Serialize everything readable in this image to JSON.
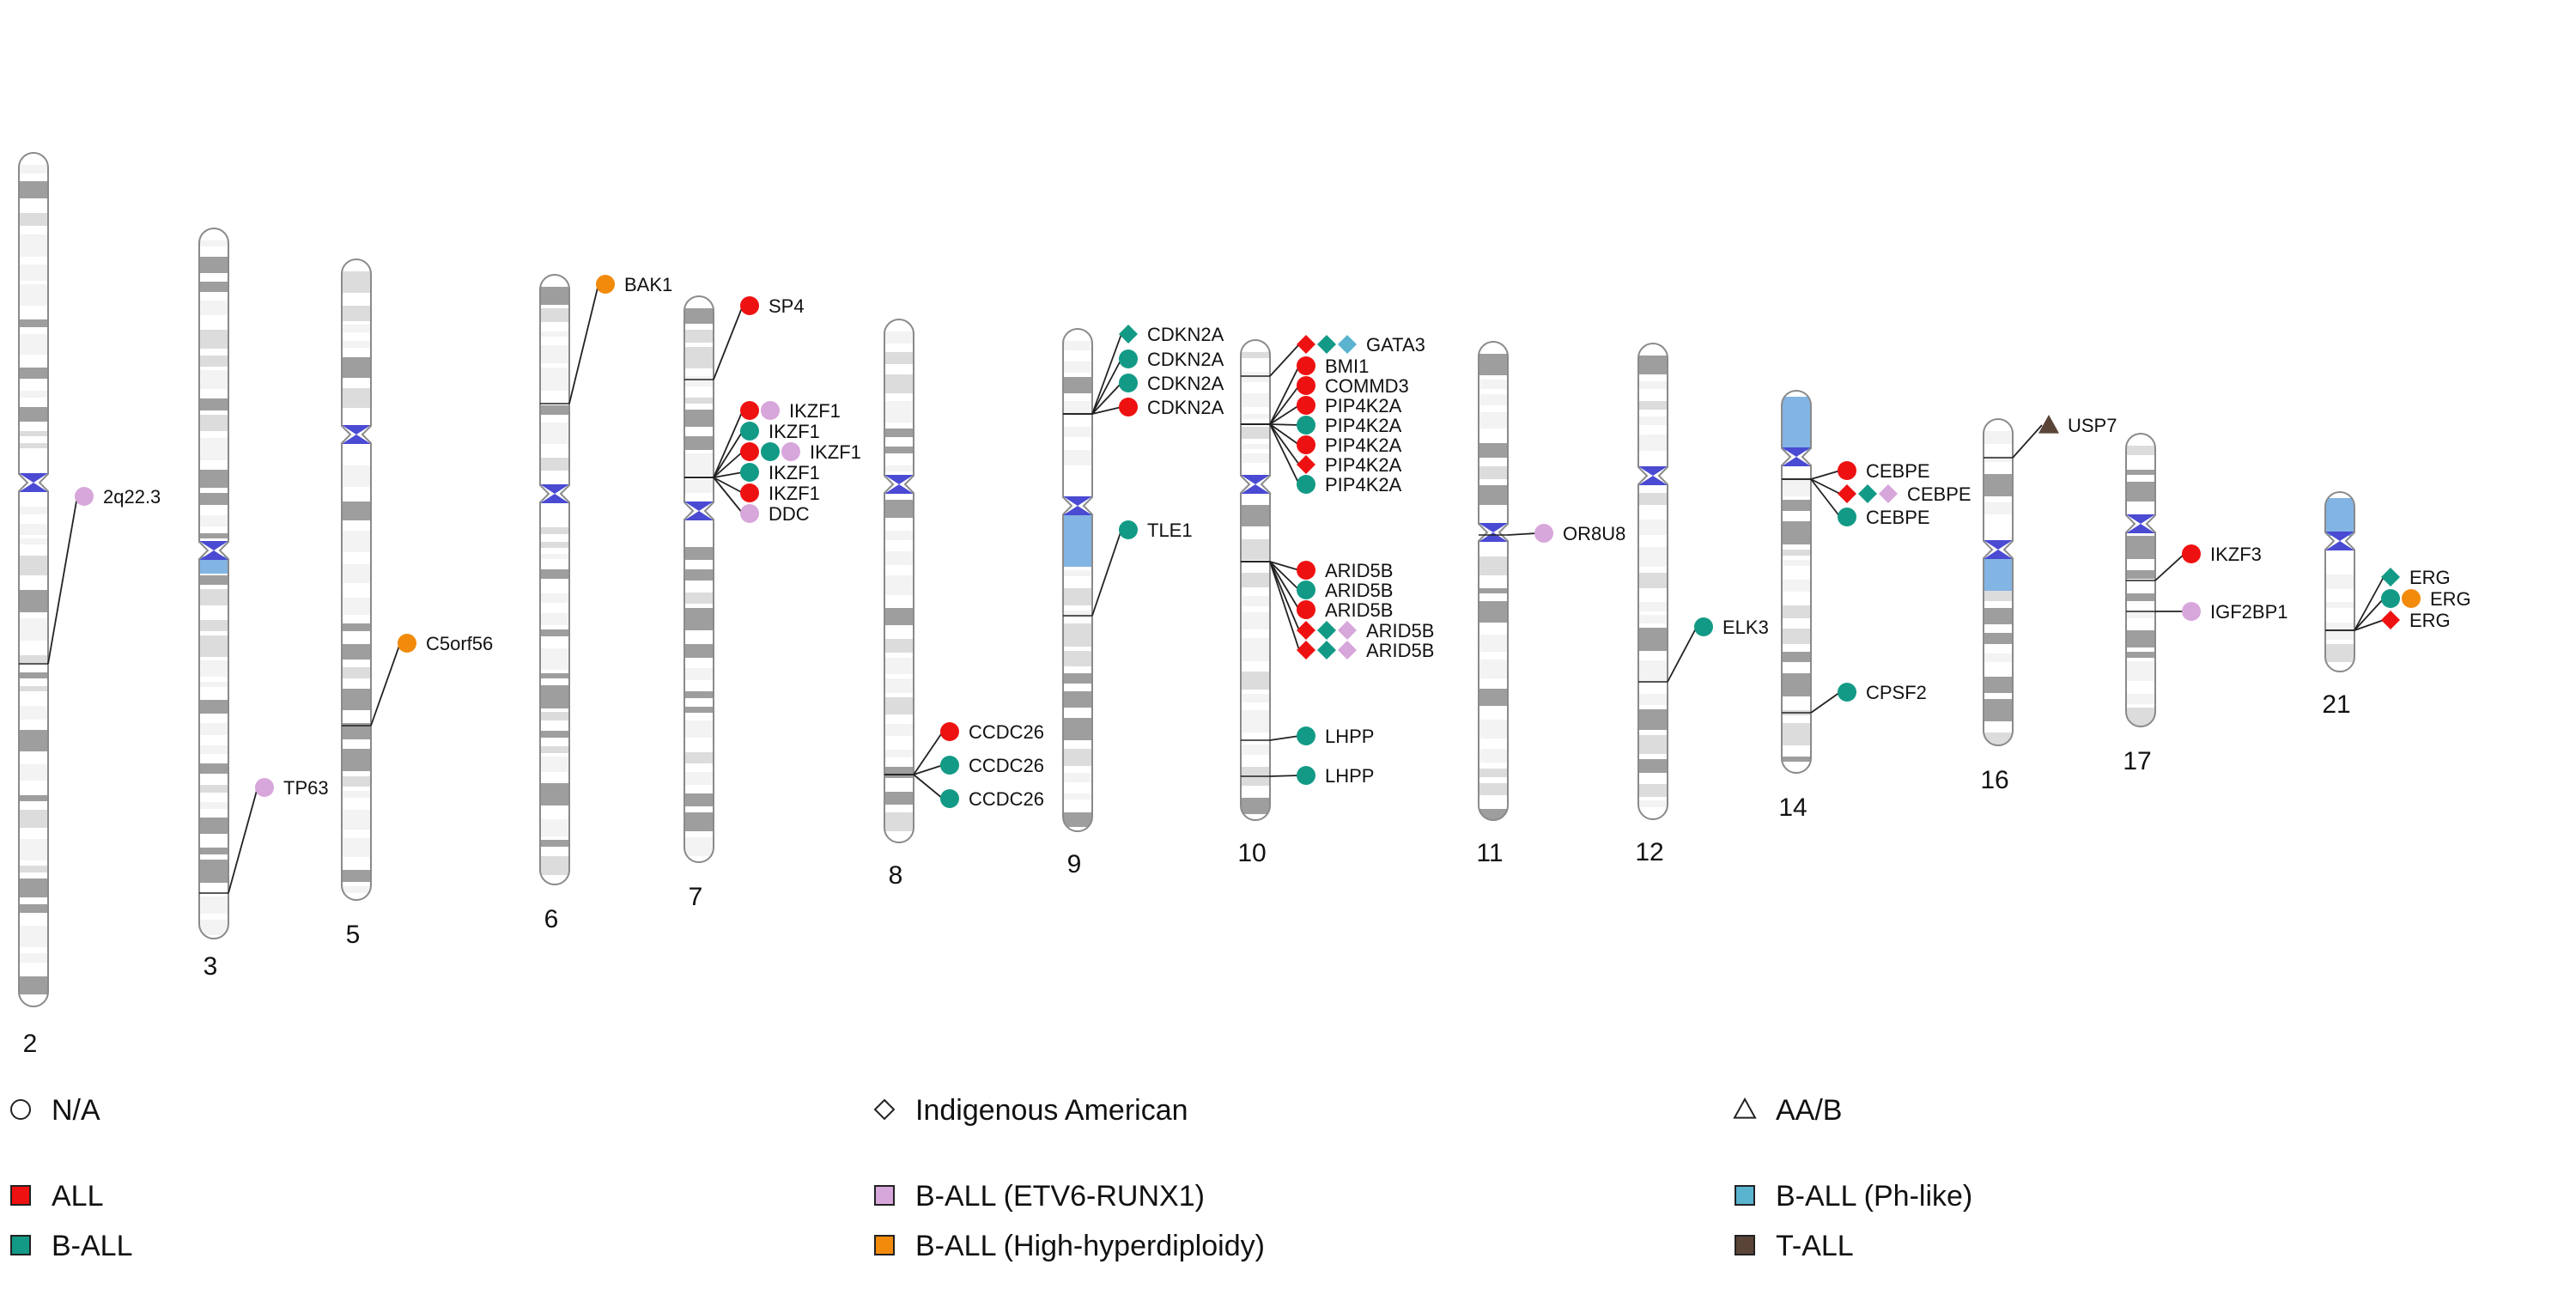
{
  "colors": {
    "ALL": "#ee1111",
    "B-ALL": "#129a86",
    "B-ALL (ETV6-RUNX1)": "#d7a6da",
    "B-ALL (High-hyperdiploidy)": "#f28a0c",
    "B-ALL (Ph-like)": "#5ab3cf",
    "T-ALL": "#5a4438",
    "centromere": "#4a4ad2",
    "dark_band": "#9e9e9e",
    "light_band": "#dcdcdc",
    "acro": "#82b4e4"
  },
  "legend": {
    "shapes": [
      {
        "shape": "circle",
        "label": "N/A"
      },
      {
        "shape": "diamond",
        "label": "Indigenous American"
      },
      {
        "shape": "triangle",
        "label": "AA/B"
      }
    ],
    "subtypes": [
      {
        "color_key": "ALL",
        "label": "ALL"
      },
      {
        "color_key": "B-ALL",
        "label": "B-ALL"
      },
      {
        "color_key": "B-ALL (ETV6-RUNX1)",
        "label": "B-ALL (ETV6-RUNX1)"
      },
      {
        "color_key": "B-ALL (High-hyperdiploidy)",
        "label": "B-ALL (High-hyperdiploidy)"
      },
      {
        "color_key": "B-ALL (Ph-like)",
        "label": "B-ALL (Ph-like)"
      },
      {
        "color_key": "T-ALL",
        "label": "T-ALL"
      }
    ]
  },
  "chromosomes": [
    {
      "label": "2",
      "loci": [
        {
          "markers": [
            {
              "shape": "circle",
              "subtype": "B-ALL (ETV6-RUNX1)"
            }
          ],
          "label": "2q22.3"
        }
      ]
    },
    {
      "label": "3",
      "loci": [
        {
          "markers": [
            {
              "shape": "circle",
              "subtype": "B-ALL (ETV6-RUNX1)"
            }
          ],
          "label": "TP63"
        }
      ]
    },
    {
      "label": "5",
      "loci": [
        {
          "markers": [
            {
              "shape": "circle",
              "subtype": "B-ALL (High-hyperdiploidy)"
            }
          ],
          "label": "C5orf56"
        }
      ]
    },
    {
      "label": "6",
      "loci": [
        {
          "markers": [
            {
              "shape": "circle",
              "subtype": "B-ALL (High-hyperdiploidy)"
            }
          ],
          "label": "BAK1"
        }
      ]
    },
    {
      "label": "7",
      "loci": [
        {
          "markers": [
            {
              "shape": "circle",
              "subtype": "ALL"
            }
          ],
          "label": "SP4"
        },
        {
          "markers": [
            {
              "shape": "circle",
              "subtype": "ALL"
            },
            {
              "shape": "circle",
              "subtype": "B-ALL (ETV6-RUNX1)"
            }
          ],
          "label": "IKZF1"
        },
        {
          "markers": [
            {
              "shape": "circle",
              "subtype": "B-ALL"
            }
          ],
          "label": "IKZF1"
        },
        {
          "markers": [
            {
              "shape": "circle",
              "subtype": "ALL"
            },
            {
              "shape": "circle",
              "subtype": "B-ALL"
            },
            {
              "shape": "circle",
              "subtype": "B-ALL (ETV6-RUNX1)"
            }
          ],
          "label": "IKZF1"
        },
        {
          "markers": [
            {
              "shape": "circle",
              "subtype": "B-ALL"
            }
          ],
          "label": "IKZF1"
        },
        {
          "markers": [
            {
              "shape": "circle",
              "subtype": "ALL"
            }
          ],
          "label": "IKZF1"
        },
        {
          "markers": [
            {
              "shape": "circle",
              "subtype": "B-ALL (ETV6-RUNX1)"
            }
          ],
          "label": "DDC"
        }
      ]
    },
    {
      "label": "8",
      "loci": [
        {
          "markers": [
            {
              "shape": "circle",
              "subtype": "ALL"
            }
          ],
          "label": "CCDC26"
        },
        {
          "markers": [
            {
              "shape": "circle",
              "subtype": "B-ALL"
            }
          ],
          "label": "CCDC26"
        },
        {
          "markers": [
            {
              "shape": "circle",
              "subtype": "B-ALL"
            }
          ],
          "label": "CCDC26"
        }
      ]
    },
    {
      "label": "9",
      "loci": [
        {
          "markers": [
            {
              "shape": "diamond",
              "subtype": "B-ALL"
            }
          ],
          "label": "CDKN2A"
        },
        {
          "markers": [
            {
              "shape": "circle",
              "subtype": "B-ALL"
            }
          ],
          "label": "CDKN2A"
        },
        {
          "markers": [
            {
              "shape": "circle",
              "subtype": "B-ALL"
            }
          ],
          "label": "CDKN2A"
        },
        {
          "markers": [
            {
              "shape": "circle",
              "subtype": "ALL"
            }
          ],
          "label": "CDKN2A"
        },
        {
          "markers": [
            {
              "shape": "circle",
              "subtype": "B-ALL"
            }
          ],
          "label": "TLE1"
        }
      ]
    },
    {
      "label": "10",
      "loci": [
        {
          "markers": [
            {
              "shape": "diamond",
              "subtype": "ALL"
            },
            {
              "shape": "diamond",
              "subtype": "B-ALL"
            },
            {
              "shape": "diamond",
              "subtype": "B-ALL (Ph-like)"
            }
          ],
          "label": "GATA3"
        },
        {
          "markers": [
            {
              "shape": "circle",
              "subtype": "ALL"
            }
          ],
          "label": "BMI1"
        },
        {
          "markers": [
            {
              "shape": "circle",
              "subtype": "ALL"
            }
          ],
          "label": "COMMD3"
        },
        {
          "markers": [
            {
              "shape": "circle",
              "subtype": "ALL"
            }
          ],
          "label": "PIP4K2A"
        },
        {
          "markers": [
            {
              "shape": "circle",
              "subtype": "B-ALL"
            }
          ],
          "label": "PIP4K2A"
        },
        {
          "markers": [
            {
              "shape": "circle",
              "subtype": "ALL"
            }
          ],
          "label": "PIP4K2A"
        },
        {
          "markers": [
            {
              "shape": "diamond",
              "subtype": "ALL"
            }
          ],
          "label": "PIP4K2A"
        },
        {
          "markers": [
            {
              "shape": "circle",
              "subtype": "B-ALL"
            }
          ],
          "label": "PIP4K2A"
        },
        {
          "markers": [
            {
              "shape": "circle",
              "subtype": "ALL"
            }
          ],
          "label": "ARID5B"
        },
        {
          "markers": [
            {
              "shape": "circle",
              "subtype": "B-ALL"
            }
          ],
          "label": "ARID5B"
        },
        {
          "markers": [
            {
              "shape": "circle",
              "subtype": "ALL"
            }
          ],
          "label": "ARID5B"
        },
        {
          "markers": [
            {
              "shape": "diamond",
              "subtype": "ALL"
            },
            {
              "shape": "diamond",
              "subtype": "B-ALL"
            },
            {
              "shape": "diamond",
              "subtype": "B-ALL (ETV6-RUNX1)"
            }
          ],
          "label": "ARID5B"
        },
        {
          "markers": [
            {
              "shape": "diamond",
              "subtype": "ALL"
            },
            {
              "shape": "diamond",
              "subtype": "B-ALL"
            },
            {
              "shape": "diamond",
              "subtype": "B-ALL (ETV6-RUNX1)"
            }
          ],
          "label": "ARID5B"
        },
        {
          "markers": [
            {
              "shape": "circle",
              "subtype": "B-ALL"
            }
          ],
          "label": "LHPP"
        },
        {
          "markers": [
            {
              "shape": "circle",
              "subtype": "B-ALL"
            }
          ],
          "label": "LHPP"
        }
      ]
    },
    {
      "label": "11",
      "loci": [
        {
          "markers": [
            {
              "shape": "circle",
              "subtype": "B-ALL (ETV6-RUNX1)"
            }
          ],
          "label": "OR8U8"
        }
      ]
    },
    {
      "label": "12",
      "loci": [
        {
          "markers": [
            {
              "shape": "circle",
              "subtype": "B-ALL"
            }
          ],
          "label": "ELK3"
        }
      ]
    },
    {
      "label": "14",
      "loci": [
        {
          "markers": [
            {
              "shape": "circle",
              "subtype": "ALL"
            }
          ],
          "label": "CEBPE"
        },
        {
          "markers": [
            {
              "shape": "diamond",
              "subtype": "ALL"
            },
            {
              "shape": "diamond",
              "subtype": "B-ALL"
            },
            {
              "shape": "diamond",
              "subtype": "B-ALL (ETV6-RUNX1)"
            }
          ],
          "label": "CEBPE"
        },
        {
          "markers": [
            {
              "shape": "circle",
              "subtype": "B-ALL"
            }
          ],
          "label": "CEBPE"
        },
        {
          "markers": [
            {
              "shape": "circle",
              "subtype": "B-ALL"
            }
          ],
          "label": "CPSF2"
        }
      ]
    },
    {
      "label": "16",
      "loci": [
        {
          "markers": [
            {
              "shape": "triangle",
              "subtype": "T-ALL"
            }
          ],
          "label": "USP7"
        }
      ]
    },
    {
      "label": "17",
      "loci": [
        {
          "markers": [
            {
              "shape": "circle",
              "subtype": "ALL"
            }
          ],
          "label": "IKZF3"
        },
        {
          "markers": [
            {
              "shape": "circle",
              "subtype": "B-ALL (ETV6-RUNX1)"
            }
          ],
          "label": "IGF2BP1"
        }
      ]
    },
    {
      "label": "21",
      "loci": [
        {
          "markers": [
            {
              "shape": "diamond",
              "subtype": "B-ALL"
            }
          ],
          "label": "ERG"
        },
        {
          "markers": [
            {
              "shape": "circle",
              "subtype": "B-ALL"
            },
            {
              "shape": "circle",
              "subtype": "B-ALL (High-hyperdiploidy)"
            }
          ],
          "label": "ERG"
        },
        {
          "markers": [
            {
              "shape": "diamond",
              "subtype": "ALL"
            }
          ],
          "label": "ERG"
        }
      ]
    }
  ]
}
